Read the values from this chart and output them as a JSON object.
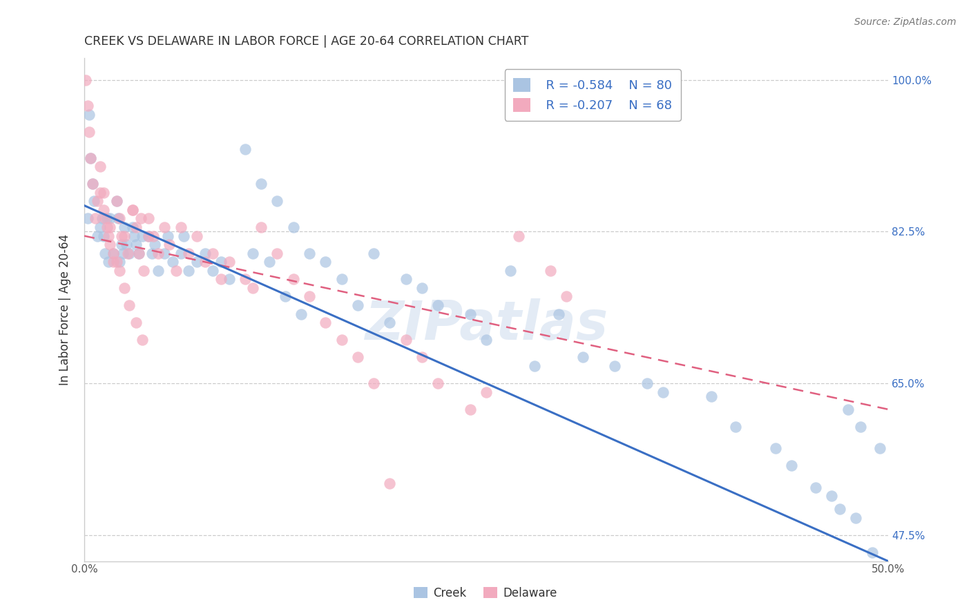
{
  "title": "CREEK VS DELAWARE IN LABOR FORCE | AGE 20-64 CORRELATION CHART",
  "source": "Source: ZipAtlas.com",
  "ylabel": "In Labor Force | Age 20-64",
  "xmin": 0.0,
  "xmax": 0.5,
  "ymin": 0.445,
  "ymax": 1.025,
  "yticks": [
    0.475,
    0.65,
    0.825,
    1.0
  ],
  "ytick_labels": [
    "47.5%",
    "65.0%",
    "82.5%",
    "100.0%"
  ],
  "xticks": [
    0.0,
    0.1,
    0.2,
    0.3,
    0.4,
    0.5
  ],
  "xtick_labels": [
    "0.0%",
    "",
    "",
    "",
    "",
    "50.0%"
  ],
  "grid_color": "#cccccc",
  "creek_color": "#aac4e2",
  "delaware_color": "#f2aabe",
  "creek_line_color": "#3a6fc4",
  "delaware_line_color": "#e06080",
  "creek_R": -0.584,
  "creek_N": 80,
  "delaware_R": -0.207,
  "delaware_N": 68,
  "watermark": "ZIPatlas",
  "legend_label_color": "#3a6fc4",
  "creek_x": [
    0.002,
    0.003,
    0.004,
    0.005,
    0.006,
    0.008,
    0.01,
    0.011,
    0.012,
    0.013,
    0.014,
    0.015,
    0.016,
    0.018,
    0.02,
    0.021,
    0.022,
    0.023,
    0.024,
    0.025,
    0.026,
    0.028,
    0.03,
    0.031,
    0.032,
    0.034,
    0.036,
    0.04,
    0.042,
    0.044,
    0.046,
    0.05,
    0.052,
    0.055,
    0.06,
    0.062,
    0.065,
    0.07,
    0.075,
    0.08,
    0.085,
    0.09,
    0.1,
    0.105,
    0.11,
    0.115,
    0.12,
    0.125,
    0.13,
    0.135,
    0.14,
    0.15,
    0.16,
    0.17,
    0.18,
    0.19,
    0.2,
    0.21,
    0.22,
    0.24,
    0.25,
    0.265,
    0.28,
    0.295,
    0.31,
    0.33,
    0.35,
    0.36,
    0.39,
    0.405,
    0.43,
    0.44,
    0.455,
    0.465,
    0.47,
    0.475,
    0.48,
    0.483,
    0.49,
    0.495
  ],
  "creek_y": [
    0.84,
    0.96,
    0.91,
    0.88,
    0.86,
    0.82,
    0.83,
    0.84,
    0.82,
    0.8,
    0.84,
    0.79,
    0.84,
    0.8,
    0.86,
    0.84,
    0.79,
    0.81,
    0.8,
    0.83,
    0.81,
    0.8,
    0.83,
    0.82,
    0.81,
    0.8,
    0.82,
    0.82,
    0.8,
    0.81,
    0.78,
    0.8,
    0.82,
    0.79,
    0.8,
    0.82,
    0.78,
    0.79,
    0.8,
    0.78,
    0.79,
    0.77,
    0.92,
    0.8,
    0.88,
    0.79,
    0.86,
    0.75,
    0.83,
    0.73,
    0.8,
    0.79,
    0.77,
    0.74,
    0.8,
    0.72,
    0.77,
    0.76,
    0.74,
    0.73,
    0.7,
    0.78,
    0.67,
    0.73,
    0.68,
    0.67,
    0.65,
    0.64,
    0.635,
    0.6,
    0.575,
    0.555,
    0.53,
    0.52,
    0.505,
    0.62,
    0.495,
    0.6,
    0.455,
    0.575
  ],
  "delaware_x": [
    0.001,
    0.002,
    0.003,
    0.004,
    0.005,
    0.007,
    0.01,
    0.012,
    0.013,
    0.015,
    0.016,
    0.018,
    0.02,
    0.022,
    0.023,
    0.025,
    0.027,
    0.03,
    0.032,
    0.034,
    0.037,
    0.04,
    0.043,
    0.046,
    0.05,
    0.053,
    0.057,
    0.06,
    0.065,
    0.07,
    0.075,
    0.08,
    0.085,
    0.09,
    0.1,
    0.105,
    0.11,
    0.12,
    0.13,
    0.14,
    0.15,
    0.16,
    0.17,
    0.18,
    0.19,
    0.2,
    0.21,
    0.22,
    0.24,
    0.25,
    0.27,
    0.29,
    0.3,
    0.02,
    0.03,
    0.035,
    0.04,
    0.008,
    0.01,
    0.012,
    0.014,
    0.016,
    0.018,
    0.022,
    0.025,
    0.028,
    0.032,
    0.036
  ],
  "delaware_y": [
    1.0,
    0.97,
    0.94,
    0.91,
    0.88,
    0.84,
    0.9,
    0.87,
    0.84,
    0.82,
    0.83,
    0.79,
    0.86,
    0.84,
    0.82,
    0.82,
    0.8,
    0.85,
    0.83,
    0.8,
    0.78,
    0.84,
    0.82,
    0.8,
    0.83,
    0.81,
    0.78,
    0.83,
    0.8,
    0.82,
    0.79,
    0.8,
    0.77,
    0.79,
    0.77,
    0.76,
    0.83,
    0.8,
    0.77,
    0.75,
    0.72,
    0.7,
    0.68,
    0.65,
    0.535,
    0.7,
    0.68,
    0.65,
    0.62,
    0.64,
    0.82,
    0.78,
    0.75,
    0.79,
    0.85,
    0.84,
    0.82,
    0.86,
    0.87,
    0.85,
    0.83,
    0.81,
    0.8,
    0.78,
    0.76,
    0.74,
    0.72,
    0.7
  ]
}
